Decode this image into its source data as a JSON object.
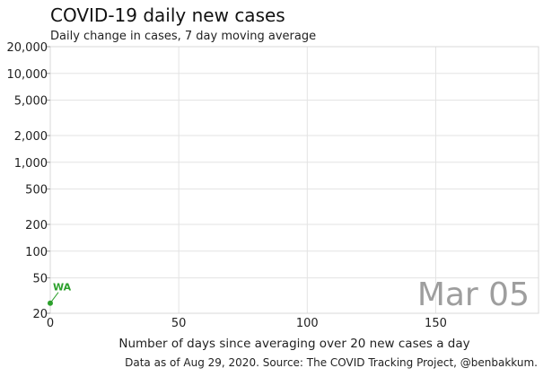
{
  "chart_data": {
    "type": "line",
    "title": "COVID-19 daily new cases",
    "subtitle": "Daily change in cases, 7 day moving average",
    "xlabel": "Number of days since averaging over 20 new cases a day",
    "ylabel": "",
    "y_scale": "log",
    "xlim": [
      0,
      190
    ],
    "ylim": [
      20,
      20000
    ],
    "x_ticks": [
      0,
      50,
      100,
      150
    ],
    "x_tick_labels": [
      "0",
      "50",
      "100",
      "150"
    ],
    "y_ticks": [
      20,
      50,
      100,
      200,
      500,
      1000,
      2000,
      5000,
      10000,
      20000
    ],
    "y_tick_labels": [
      "20",
      "50",
      "100",
      "200",
      "500",
      "1,000",
      "2,000",
      "5,000",
      "10,000",
      "20,000"
    ],
    "grid": true,
    "series": [
      {
        "name": "WA",
        "color": "#2ca02c",
        "x": [
          0
        ],
        "y": [
          26
        ]
      }
    ],
    "date_stamp": "Mar 05",
    "source_note": "Data as of Aug 29, 2020. Source: The COVID Tracking Project, @benbakkum."
  }
}
